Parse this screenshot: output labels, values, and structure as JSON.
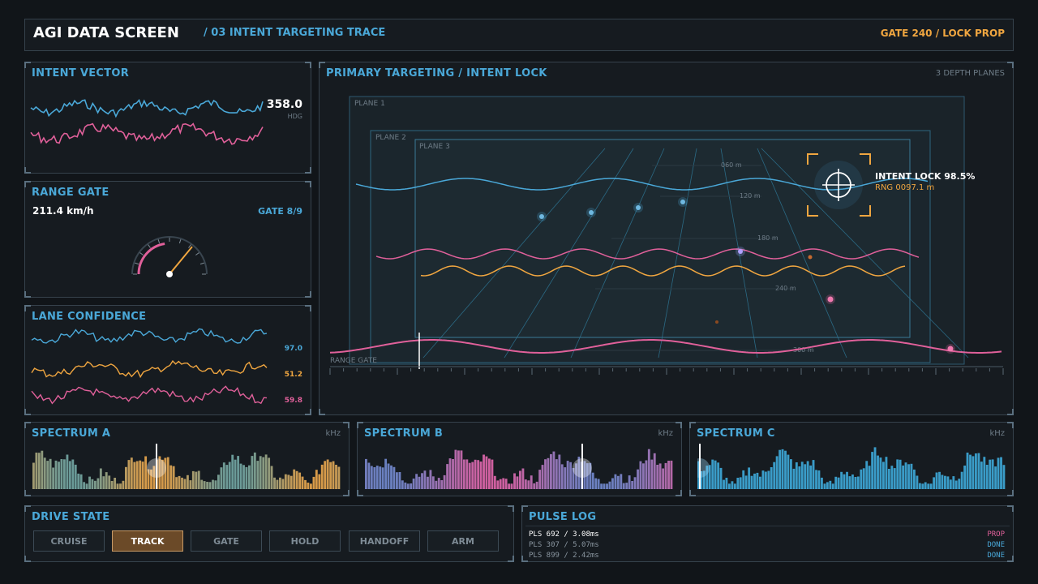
{
  "header": {
    "title": "AGI DATA SCREEN",
    "subtitle": "/ 03 INTENT TARGETING TRACE",
    "status": "GATE 240 / LOCK PROP"
  },
  "intent_vector": {
    "title": "INTENT VECTOR",
    "value": "358.0",
    "unit": "HDG"
  },
  "range_gate": {
    "title": "RANGE GATE",
    "speed": "211.4 km/h",
    "gate": "GATE 8/9",
    "gauge_fraction": 0.72
  },
  "lane_confidence": {
    "title": "LANE CONFIDENCE",
    "values": [
      "97.0",
      "51.2",
      "59.8"
    ]
  },
  "targeting": {
    "title": "PRIMARY TARGETING / INTENT LOCK",
    "subtitle": "3 DEPTH PLANES",
    "planes": [
      "PLANE 1",
      "PLANE 2",
      "PLANE 3"
    ],
    "ranges": [
      "060 m",
      "120 m",
      "180 m",
      "240 m",
      "300 m"
    ],
    "lock_label": "INTENT LOCK 98.5%",
    "rng_label": "RNG 0097.1 m",
    "range_gate_label": "RANGE GATE"
  },
  "spectra": [
    {
      "title": "SPECTRUM A",
      "unit": "kHz"
    },
    {
      "title": "SPECTRUM B",
      "unit": "kHz"
    },
    {
      "title": "SPECTRUM C",
      "unit": "kHz"
    }
  ],
  "drive_state": {
    "title": "DRIVE STATE",
    "modes": [
      "CRUISE",
      "TRACK",
      "GATE",
      "HOLD",
      "HANDOFF",
      "ARM"
    ],
    "active": "TRACK"
  },
  "pulse_log": {
    "title": "PULSE LOG",
    "rows": [
      {
        "text": "PLS 692 / 3.08ms",
        "status": "PROP"
      },
      {
        "text": "PLS 307 / 5.07ms",
        "status": "DONE"
      },
      {
        "text": "PLS 899 / 2.42ms",
        "status": "DONE"
      }
    ]
  },
  "colors": {
    "accent": "#4aa8d8",
    "pink": "#e0609a",
    "orange": "#f0a640",
    "text": "#cfd8df"
  }
}
